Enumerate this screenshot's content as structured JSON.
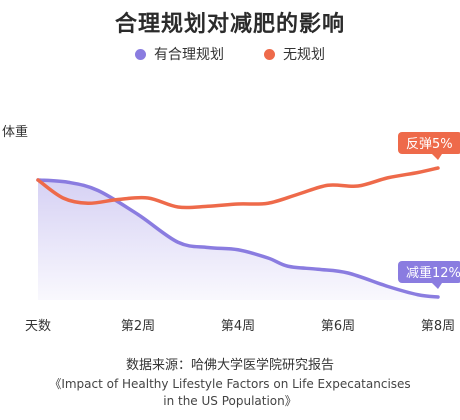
{
  "title": "合理规划对减肥的影响",
  "legend": [
    {
      "label": "有合理规划",
      "color": "#8a7ce0"
    },
    {
      "label": "无规划",
      "color": "#ee6a4a"
    }
  ],
  "source_label": "数据来源：哈佛大学医学院研究报告",
  "reference_line1": "《Impact of Healthy Lifestyle Factors on Life Expecatancises",
  "reference_line2": "in the US Population》",
  "chart_data": {
    "type": "line",
    "ylabel": "体重",
    "xlabel": "",
    "x_ticks": [
      "天数",
      "第2周",
      "第4周",
      "第6周",
      "第8周"
    ],
    "x_range": [
      0,
      8
    ],
    "ylim": [
      -16,
      8
    ],
    "grid": false,
    "series": [
      {
        "name": "有合理规划",
        "color": "#8a7ce0",
        "x": [
          0,
          0.6,
          1.2,
          2,
          2.8,
          3.4,
          4,
          4.6,
          5,
          5.6,
          6.2,
          7,
          7.6,
          8
        ],
        "values": [
          0,
          -0.3,
          -1.4,
          -4.6,
          -8.3,
          -9.0,
          -9.3,
          -10.4,
          -11.5,
          -11.9,
          -12.4,
          -14.2,
          -15.3,
          -15.6
        ]
      },
      {
        "name": "无规划",
        "color": "#ee6a4a",
        "x": [
          0,
          0.5,
          1,
          1.6,
          2.2,
          2.8,
          3.4,
          4,
          4.6,
          5.2,
          5.8,
          6.4,
          7,
          7.6,
          8
        ],
        "values": [
          0,
          -2.4,
          -3.1,
          -2.6,
          -2.4,
          -3.6,
          -3.5,
          -3.2,
          -3.1,
          -1.9,
          -0.7,
          -0.8,
          0.3,
          1.0,
          1.6
        ]
      }
    ],
    "annotations": [
      {
        "text": "反弹5%",
        "series": "无规划",
        "color": "#ee6a4a"
      },
      {
        "text": "减重12%",
        "series": "有合理规划",
        "color": "#8a7ce0"
      }
    ]
  }
}
